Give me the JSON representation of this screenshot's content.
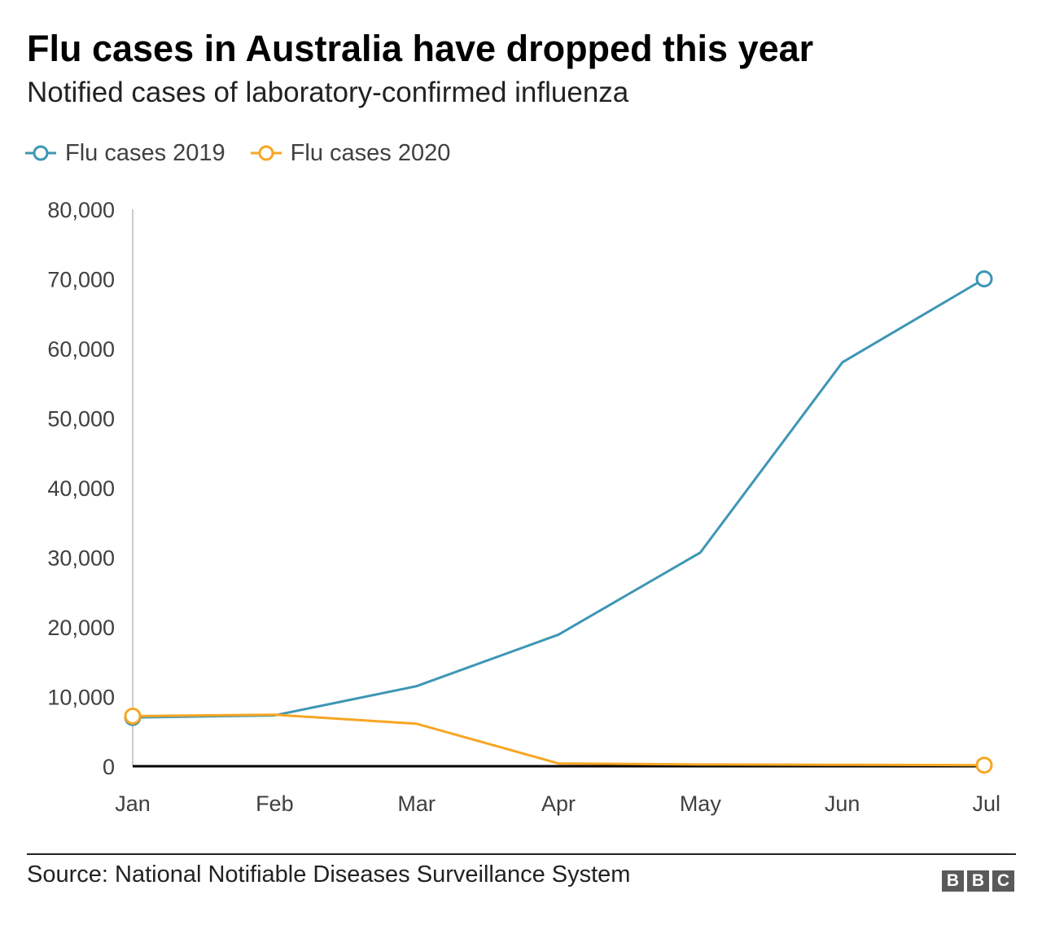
{
  "header": {
    "title": "Flu cases in Australia have dropped this year",
    "subtitle": "Notified cases of laboratory-confirmed influenza"
  },
  "legend": [
    {
      "label": "Flu cases 2019",
      "color": "#3d96b5"
    },
    {
      "label": "Flu cases 2020",
      "color": "#f6a623"
    }
  ],
  "chart_data": {
    "type": "line",
    "title": "Flu cases in Australia have dropped this year",
    "subtitle": "Notified cases of laboratory-confirmed influenza",
    "xlabel": "",
    "ylabel": "",
    "categories": [
      "Jan",
      "Feb",
      "Mar",
      "Apr",
      "May",
      "Jun",
      "Jul"
    ],
    "ylim": [
      0,
      80000
    ],
    "yticks": [
      0,
      10000,
      20000,
      30000,
      40000,
      50000,
      60000,
      70000,
      80000
    ],
    "ytick_labels": [
      "0",
      "10,000",
      "20,000",
      "30,000",
      "40,000",
      "50,000",
      "60,000",
      "70,000",
      "80,000"
    ],
    "grid": false,
    "legend_position": "top-left",
    "series": [
      {
        "name": "Flu cases 2019",
        "color": "#3d96b5",
        "values": [
          7000,
          7300,
          11500,
          18900,
          30700,
          58000,
          70000
        ]
      },
      {
        "name": "Flu cases 2020",
        "color": "#f6a623",
        "values": [
          7200,
          7400,
          6100,
          400,
          250,
          200,
          150
        ]
      }
    ]
  },
  "footer": {
    "source": "Source: National Notifiable Diseases Surveillance System",
    "logo_letters": [
      "B",
      "B",
      "C"
    ]
  }
}
